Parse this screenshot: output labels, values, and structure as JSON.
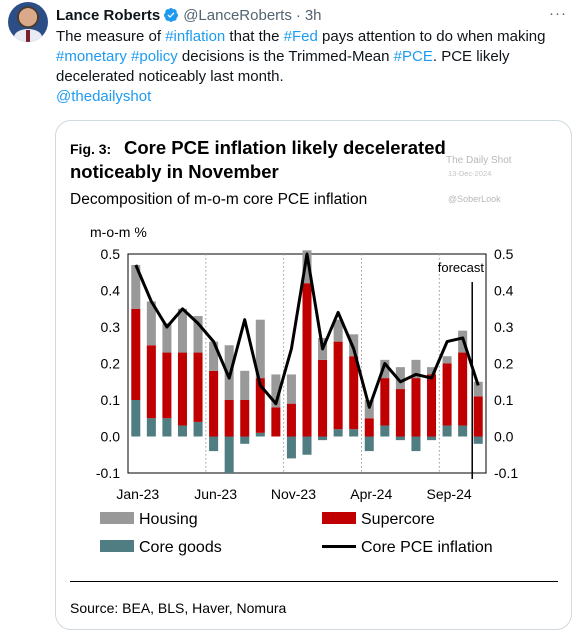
{
  "tweet": {
    "author_name": "Lance Roberts",
    "handle": "@LanceRoberts",
    "separator": "·",
    "time": "3h",
    "more_label": "···",
    "text_parts": [
      "The measure of ",
      "#inflation",
      " that the ",
      "#Fed",
      " pays attention to do when making ",
      "#monetary",
      " ",
      "#policy",
      " decisions is the Trimmed-Mean ",
      "#PCE",
      ".  PCE likely decelerated noticeably last month."
    ],
    "mention": "@thedailyshot"
  },
  "figure": {
    "fig_label": "Fig. 3:",
    "title_line1": "Core PCE inflation likely decelerated",
    "title_line2": "noticeably in November",
    "subtitle": "Decomposition of m-o-m core PCE inflation",
    "watermark_brand": "The Daily Shot",
    "watermark_date": "13-Dec-2024",
    "watermark_handle": "@SoberLook",
    "source": "Source: BEA, BLS, Haver, Nomura"
  },
  "chart_data": {
    "type": "bar",
    "stacked": true,
    "unit_label": "m-o-m %",
    "ylim": [
      -0.1,
      0.5
    ],
    "y_ticks": [
      "0.5",
      "0.4",
      "0.3",
      "0.2",
      "0.1",
      "0.0",
      "-0.1"
    ],
    "x_tick_labels": [
      "Jan-23",
      "Jun-23",
      "Nov-23",
      "Apr-24",
      "Sep-24"
    ],
    "x_tick_index": [
      0,
      5,
      10,
      15,
      20
    ],
    "annotation": "forecast",
    "forecast_index": 22,
    "gridlines": "vertical-dotted",
    "categories": [
      "Jan-23",
      "Feb-23",
      "Mar-23",
      "Apr-23",
      "May-23",
      "Jun-23",
      "Jul-23",
      "Aug-23",
      "Sep-23",
      "Oct-23",
      "Nov-23",
      "Dec-23",
      "Jan-24",
      "Feb-24",
      "Mar-24",
      "Apr-24",
      "May-24",
      "Jun-24",
      "Jul-24",
      "Aug-24",
      "Sep-24",
      "Oct-24",
      "Nov-24"
    ],
    "series": [
      {
        "name": "Core goods",
        "color": "#4f7d82",
        "values": [
          0.1,
          0.05,
          0.05,
          0.03,
          0.04,
          -0.04,
          -0.1,
          -0.02,
          0.01,
          0.0,
          -0.06,
          -0.05,
          -0.01,
          0.02,
          0.02,
          -0.04,
          0.03,
          -0.01,
          -0.04,
          -0.01,
          0.03,
          0.03,
          -0.02
        ]
      },
      {
        "name": "Supercore",
        "color": "#c00000",
        "values": [
          0.25,
          0.2,
          0.18,
          0.2,
          0.19,
          0.18,
          0.1,
          0.1,
          0.15,
          0.08,
          0.09,
          0.42,
          0.21,
          0.24,
          0.2,
          0.05,
          0.13,
          0.13,
          0.16,
          0.17,
          0.17,
          0.2,
          0.11
        ]
      },
      {
        "name": "Housing",
        "color": "#999999",
        "values": [
          0.12,
          0.12,
          0.08,
          0.12,
          0.1,
          0.08,
          0.15,
          0.08,
          0.16,
          0.09,
          0.08,
          0.09,
          0.06,
          0.06,
          0.06,
          0.05,
          0.05,
          0.06,
          0.05,
          0.02,
          0.02,
          0.06,
          0.04
        ]
      },
      {
        "name": "Core PCE inflation",
        "color": "#000000",
        "kind": "line",
        "values": [
          0.47,
          0.37,
          0.3,
          0.35,
          0.31,
          0.26,
          0.16,
          0.32,
          0.14,
          0.09,
          0.24,
          0.5,
          0.24,
          0.34,
          0.24,
          0.08,
          0.2,
          0.15,
          0.17,
          0.16,
          0.26,
          0.27,
          0.14
        ]
      }
    ],
    "legend": [
      "Housing",
      "Supercore",
      "Core goods",
      "Core PCE inflation"
    ],
    "legend_placement": "bottom"
  }
}
